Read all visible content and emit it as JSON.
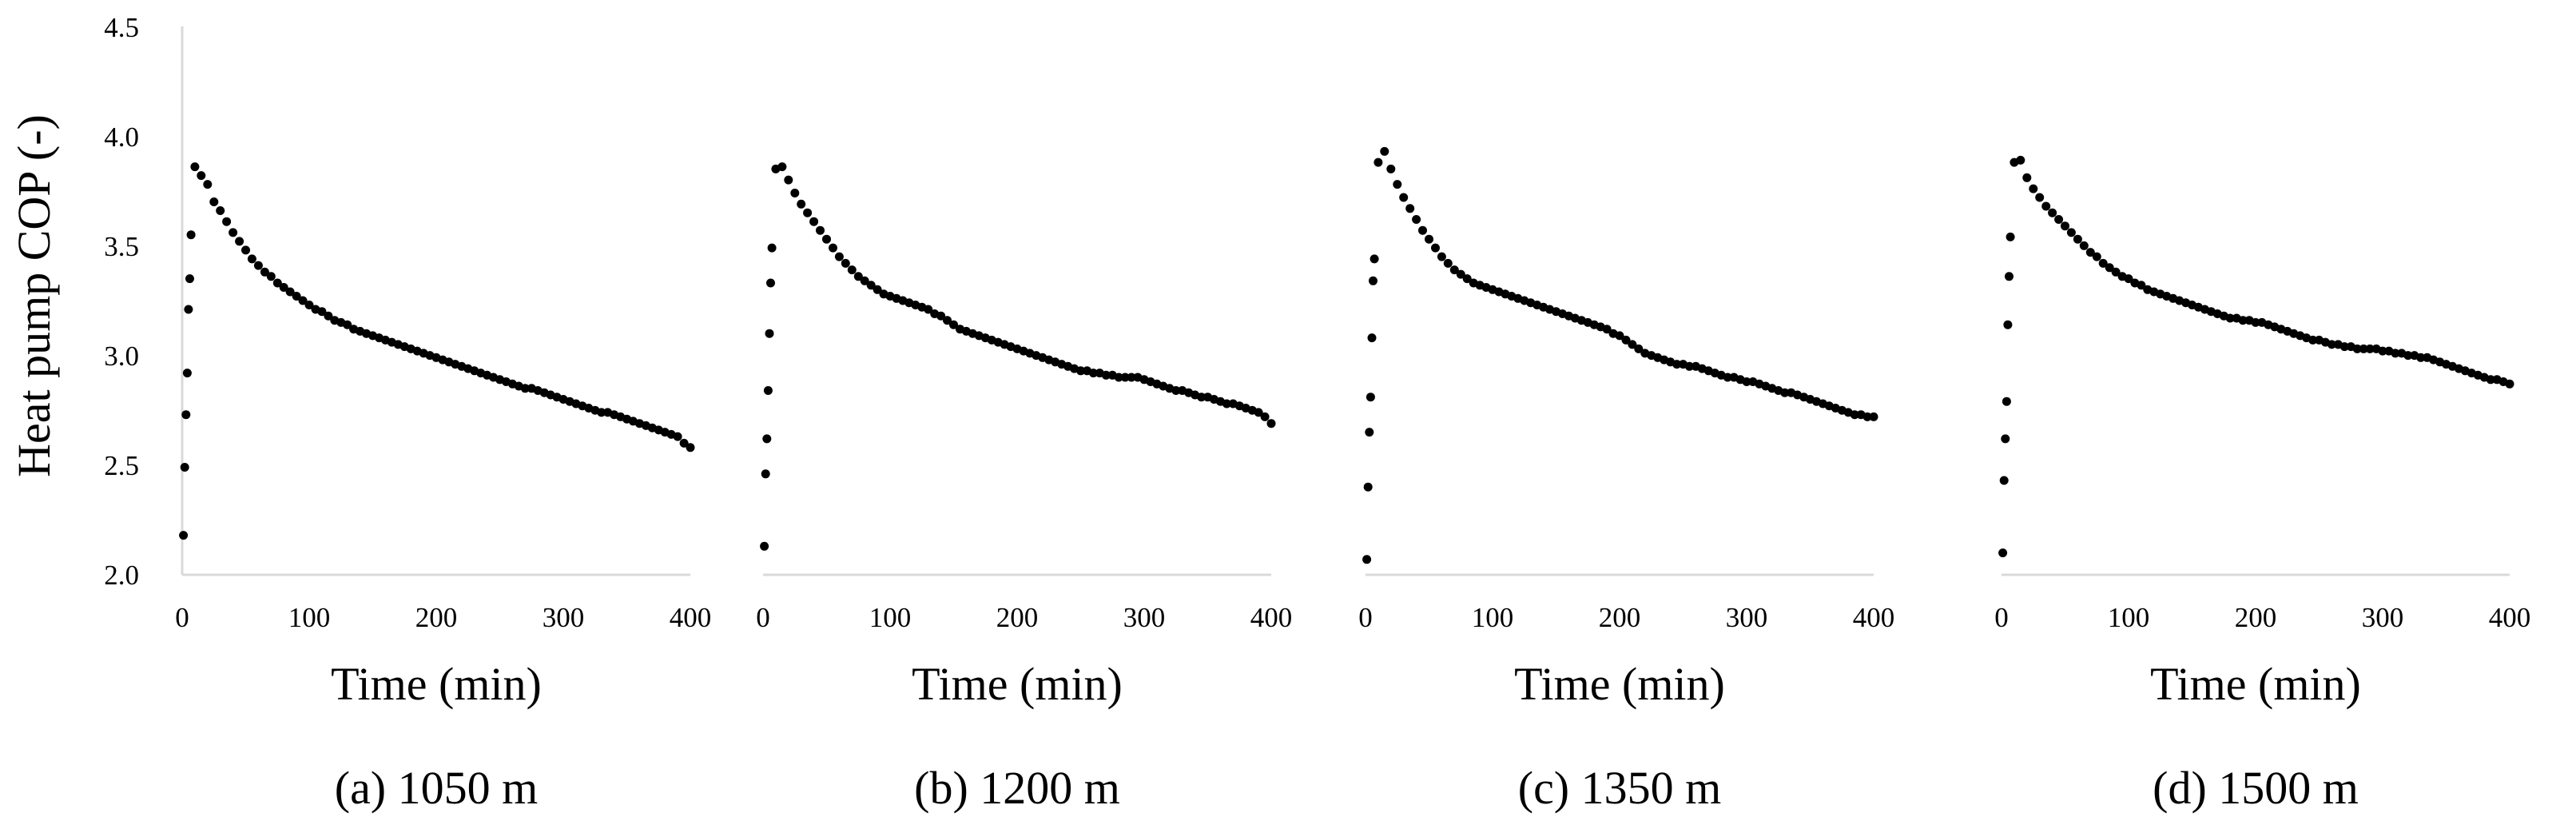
{
  "figure": {
    "shared_ylabel": "Heat pump COP (-)",
    "point_color": "#000000",
    "axis_color": "#d9d9d9"
  },
  "chart_data": [
    {
      "type": "scatter",
      "caption": "(a) 1050 m",
      "xlabel": "Time (min)",
      "ylabel": "Heat pump COP (-)",
      "xlim": [
        0,
        400
      ],
      "ylim": [
        2.0,
        4.5
      ],
      "xticks": [
        "0",
        "100",
        "200",
        "300",
        "400"
      ],
      "yticks": [
        "2.0",
        "2.5",
        "3.0",
        "3.5",
        "4.0",
        "4.5"
      ],
      "grid": false,
      "x": [
        1,
        2,
        3,
        4,
        5,
        6,
        7,
        10,
        15,
        20,
        25,
        30,
        35,
        40,
        45,
        50,
        55,
        60,
        65,
        70,
        75,
        80,
        85,
        90,
        95,
        100,
        105,
        110,
        115,
        120,
        125,
        130,
        135,
        140,
        145,
        150,
        155,
        160,
        165,
        170,
        175,
        180,
        185,
        190,
        195,
        200,
        205,
        210,
        215,
        220,
        225,
        230,
        235,
        240,
        245,
        250,
        255,
        260,
        265,
        270,
        275,
        280,
        285,
        290,
        295,
        300,
        305,
        310,
        315,
        320,
        325,
        330,
        335,
        340,
        345,
        350,
        355,
        360,
        365,
        370,
        375,
        380,
        385,
        390,
        395,
        400
      ],
      "y": [
        2.18,
        2.49,
        2.73,
        2.92,
        3.21,
        3.35,
        3.55,
        3.86,
        3.82,
        3.78,
        3.7,
        3.66,
        3.61,
        3.56,
        3.52,
        3.48,
        3.44,
        3.41,
        3.38,
        3.36,
        3.33,
        3.31,
        3.29,
        3.27,
        3.25,
        3.23,
        3.21,
        3.2,
        3.18,
        3.16,
        3.15,
        3.14,
        3.12,
        3.11,
        3.1,
        3.09,
        3.08,
        3.07,
        3.06,
        3.05,
        3.04,
        3.03,
        3.02,
        3.01,
        3.0,
        2.99,
        2.98,
        2.97,
        2.96,
        2.95,
        2.94,
        2.93,
        2.92,
        2.91,
        2.9,
        2.89,
        2.88,
        2.87,
        2.86,
        2.85,
        2.85,
        2.84,
        2.83,
        2.82,
        2.81,
        2.8,
        2.79,
        2.78,
        2.77,
        2.76,
        2.75,
        2.74,
        2.74,
        2.73,
        2.72,
        2.71,
        2.7,
        2.69,
        2.68,
        2.67,
        2.66,
        2.65,
        2.64,
        2.63,
        2.6,
        2.58
      ]
    },
    {
      "type": "scatter",
      "caption": "(b) 1200 m",
      "xlabel": "Time (min)",
      "ylabel": "Heat pump COP (-)",
      "xlim": [
        0,
        400
      ],
      "ylim": [
        2.0,
        4.5
      ],
      "xticks": [
        "0",
        "100",
        "200",
        "300",
        "400"
      ],
      "yticks": [
        "2.0",
        "2.5",
        "3.0",
        "3.5",
        "4.0",
        "4.5"
      ],
      "grid": false,
      "x": [
        1,
        2,
        3,
        4,
        5,
        6,
        7,
        10,
        15,
        20,
        25,
        30,
        35,
        40,
        45,
        50,
        55,
        60,
        65,
        70,
        75,
        80,
        85,
        90,
        95,
        100,
        105,
        110,
        115,
        120,
        125,
        130,
        135,
        140,
        145,
        150,
        155,
        160,
        165,
        170,
        175,
        180,
        185,
        190,
        195,
        200,
        205,
        210,
        215,
        220,
        225,
        230,
        235,
        240,
        245,
        250,
        255,
        260,
        265,
        270,
        275,
        280,
        285,
        290,
        295,
        300,
        305,
        310,
        315,
        320,
        325,
        330,
        335,
        340,
        345,
        350,
        355,
        360,
        365,
        370,
        375,
        380,
        385,
        390,
        395,
        400
      ],
      "y": [
        2.13,
        2.46,
        2.62,
        2.84,
        3.1,
        3.33,
        3.49,
        3.85,
        3.86,
        3.8,
        3.74,
        3.69,
        3.65,
        3.61,
        3.57,
        3.53,
        3.49,
        3.45,
        3.42,
        3.39,
        3.36,
        3.34,
        3.32,
        3.3,
        3.28,
        3.27,
        3.26,
        3.25,
        3.24,
        3.23,
        3.22,
        3.21,
        3.19,
        3.18,
        3.16,
        3.14,
        3.12,
        3.11,
        3.1,
        3.09,
        3.08,
        3.07,
        3.06,
        3.05,
        3.04,
        3.03,
        3.02,
        3.01,
        3.0,
        2.99,
        2.98,
        2.97,
        2.96,
        2.95,
        2.94,
        2.93,
        2.93,
        2.92,
        2.92,
        2.91,
        2.91,
        2.9,
        2.9,
        2.9,
        2.9,
        2.89,
        2.88,
        2.87,
        2.86,
        2.85,
        2.84,
        2.84,
        2.83,
        2.82,
        2.81,
        2.81,
        2.8,
        2.79,
        2.78,
        2.78,
        2.77,
        2.76,
        2.75,
        2.74,
        2.72,
        2.69
      ]
    },
    {
      "type": "scatter",
      "caption": "(c) 1350 m",
      "xlabel": "Time (min)",
      "ylabel": "Heat pump COP (-)",
      "xlim": [
        0,
        400
      ],
      "ylim": [
        2.0,
        4.5
      ],
      "xticks": [
        "0",
        "100",
        "200",
        "300",
        "400"
      ],
      "yticks": [
        "2.0",
        "2.5",
        "3.0",
        "3.5",
        "4.0",
        "4.5"
      ],
      "grid": false,
      "x": [
        1,
        2,
        3,
        4,
        5,
        6,
        7,
        10,
        15,
        20,
        25,
        30,
        35,
        40,
        45,
        50,
        55,
        60,
        65,
        70,
        75,
        80,
        85,
        90,
        95,
        100,
        105,
        110,
        115,
        120,
        125,
        130,
        135,
        140,
        145,
        150,
        155,
        160,
        165,
        170,
        175,
        180,
        185,
        190,
        195,
        200,
        205,
        210,
        215,
        220,
        225,
        230,
        235,
        240,
        245,
        250,
        255,
        260,
        265,
        270,
        275,
        280,
        285,
        290,
        295,
        300,
        305,
        310,
        315,
        320,
        325,
        330,
        335,
        340,
        345,
        350,
        355,
        360,
        365,
        370,
        375,
        380,
        385,
        390,
        395,
        400
      ],
      "y": [
        2.07,
        2.4,
        2.65,
        2.81,
        3.08,
        3.34,
        3.44,
        3.88,
        3.93,
        3.85,
        3.78,
        3.72,
        3.67,
        3.62,
        3.57,
        3.53,
        3.49,
        3.45,
        3.42,
        3.39,
        3.37,
        3.35,
        3.33,
        3.32,
        3.31,
        3.3,
        3.29,
        3.28,
        3.27,
        3.26,
        3.25,
        3.24,
        3.23,
        3.22,
        3.21,
        3.2,
        3.19,
        3.18,
        3.17,
        3.16,
        3.15,
        3.14,
        3.13,
        3.12,
        3.1,
        3.09,
        3.07,
        3.05,
        3.03,
        3.01,
        3.0,
        2.99,
        2.98,
        2.97,
        2.96,
        2.96,
        2.95,
        2.95,
        2.94,
        2.93,
        2.92,
        2.91,
        2.9,
        2.9,
        2.89,
        2.88,
        2.88,
        2.87,
        2.86,
        2.85,
        2.84,
        2.83,
        2.83,
        2.82,
        2.81,
        2.8,
        2.79,
        2.78,
        2.77,
        2.76,
        2.75,
        2.74,
        2.73,
        2.73,
        2.72,
        2.72
      ]
    },
    {
      "type": "scatter",
      "caption": "(d) 1500 m",
      "xlabel": "Time (min)",
      "ylabel": "Heat pump COP (-)",
      "xlim": [
        0,
        400
      ],
      "ylim": [
        2.0,
        4.5
      ],
      "xticks": [
        "0",
        "100",
        "200",
        "300",
        "400"
      ],
      "yticks": [
        "2.0",
        "2.5",
        "3.0",
        "3.5",
        "4.0",
        "4.5"
      ],
      "grid": false,
      "x": [
        1,
        2,
        3,
        4,
        5,
        6,
        7,
        10,
        15,
        20,
        25,
        30,
        35,
        40,
        45,
        50,
        55,
        60,
        65,
        70,
        75,
        80,
        85,
        90,
        95,
        100,
        105,
        110,
        115,
        120,
        125,
        130,
        135,
        140,
        145,
        150,
        155,
        160,
        165,
        170,
        175,
        180,
        185,
        190,
        195,
        200,
        205,
        210,
        215,
        220,
        225,
        230,
        235,
        240,
        245,
        250,
        255,
        260,
        265,
        270,
        275,
        280,
        285,
        290,
        295,
        300,
        305,
        310,
        315,
        320,
        325,
        330,
        335,
        340,
        345,
        350,
        355,
        360,
        365,
        370,
        375,
        380,
        385,
        390,
        395,
        400
      ],
      "y": [
        2.1,
        2.43,
        2.62,
        2.79,
        3.14,
        3.36,
        3.54,
        3.88,
        3.89,
        3.81,
        3.76,
        3.72,
        3.68,
        3.65,
        3.62,
        3.59,
        3.56,
        3.53,
        3.5,
        3.47,
        3.45,
        3.42,
        3.4,
        3.38,
        3.36,
        3.35,
        3.33,
        3.32,
        3.3,
        3.29,
        3.28,
        3.27,
        3.26,
        3.25,
        3.24,
        3.23,
        3.22,
        3.21,
        3.2,
        3.19,
        3.18,
        3.17,
        3.17,
        3.16,
        3.16,
        3.15,
        3.15,
        3.14,
        3.13,
        3.12,
        3.11,
        3.1,
        3.09,
        3.08,
        3.07,
        3.07,
        3.06,
        3.05,
        3.05,
        3.04,
        3.04,
        3.03,
        3.03,
        3.03,
        3.03,
        3.02,
        3.02,
        3.01,
        3.01,
        3.0,
        3.0,
        2.99,
        2.99,
        2.98,
        2.97,
        2.96,
        2.95,
        2.94,
        2.93,
        2.92,
        2.91,
        2.9,
        2.89,
        2.89,
        2.88,
        2.87
      ]
    }
  ]
}
